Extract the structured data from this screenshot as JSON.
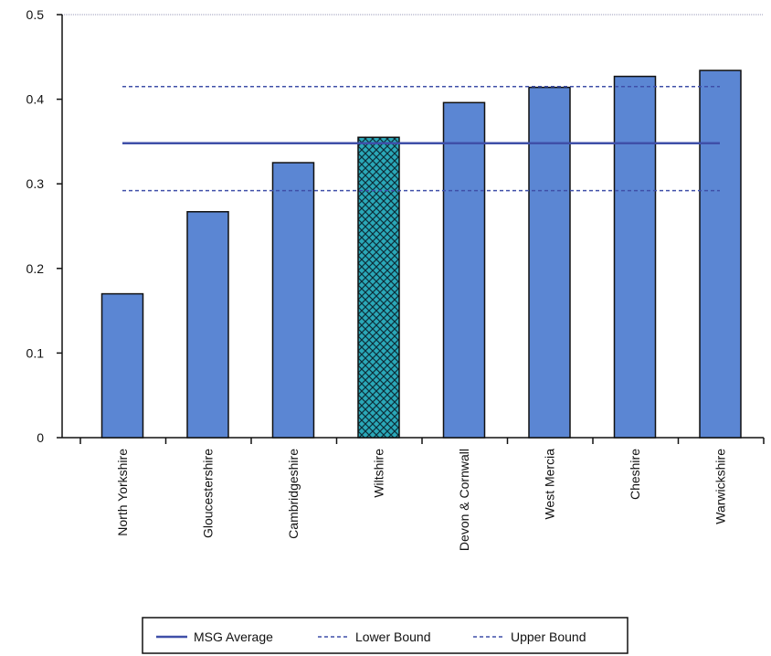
{
  "chart_data": {
    "type": "bar",
    "categories": [
      "North Yorkshire",
      "Gloucestershire",
      "Cambridgeshire",
      "Wiltshire",
      "Devon & Cornwall",
      "West Mercia",
      "Cheshire",
      "Warwickshire"
    ],
    "values": [
      0.17,
      0.267,
      0.325,
      0.355,
      0.396,
      0.414,
      0.427,
      0.434
    ],
    "highlighted_category": "Wiltshire",
    "ylim": [
      0,
      0.5
    ],
    "yticks": [
      "0",
      "0.1",
      "0.2",
      "0.3",
      "0.4",
      "0.5"
    ],
    "ytick_values": [
      0,
      0.1,
      0.2,
      0.3,
      0.4,
      0.5
    ],
    "reference_lines": [
      {
        "name": "MSG Average",
        "value": 0.348,
        "style": "solid",
        "color": "#3f4fa8"
      },
      {
        "name": "Lower Bound",
        "value": 0.292,
        "style": "dashed",
        "color": "#3f4fa8"
      },
      {
        "name": "Upper Bound",
        "value": 0.415,
        "style": "dashed",
        "color": "#3f4fa8"
      }
    ],
    "legend": [
      "MSG Average",
      "Lower Bound",
      "Upper Bound"
    ],
    "legend_position": "bottom-center",
    "grid": false,
    "colors": {
      "bar": "#5b86d3",
      "highlight_bar": "#2aa8b8",
      "bar_edge": "#111111",
      "line": "#3f4fa8"
    }
  }
}
